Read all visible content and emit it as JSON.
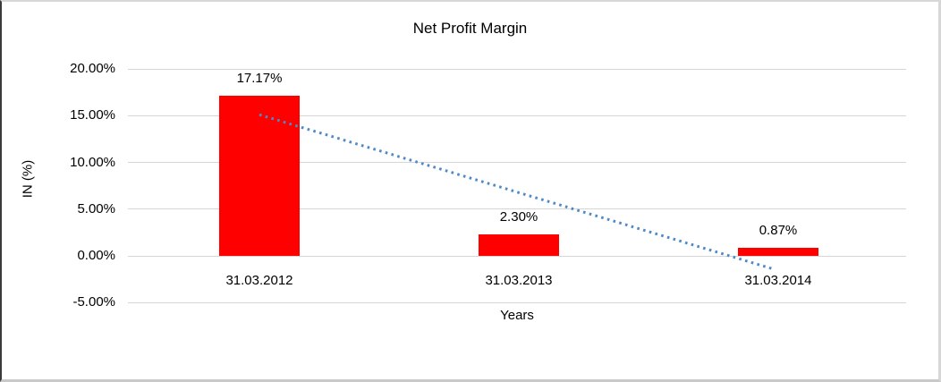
{
  "chart_data": {
    "type": "bar",
    "title": "Net Profit Margin",
    "xlabel": "Years",
    "ylabel": "IN (%)",
    "categories": [
      "31.03.2012",
      "31.03.2013",
      "31.03.2014"
    ],
    "series": [
      {
        "name": "Net Profit Margin",
        "values": [
          17.17,
          2.3,
          0.87
        ]
      }
    ],
    "value_labels": [
      "17.17%",
      "2.30%",
      "0.87%"
    ],
    "yticks": [
      {
        "value": 20,
        "label": "20.00%"
      },
      {
        "value": 15,
        "label": "15.00%"
      },
      {
        "value": 10,
        "label": "10.00%"
      },
      {
        "value": 5,
        "label": "5.00%"
      },
      {
        "value": 0,
        "label": "0.00%"
      },
      {
        "value": -5,
        "label": "-5.00%"
      }
    ],
    "ylim": [
      -5,
      20
    ],
    "grid": true,
    "legend": "none",
    "bar_color": "#ff0000",
    "gridline_color": "#d6d6d6",
    "trendline": {
      "type": "linear",
      "style": "dotted",
      "color": "#4e8ac8",
      "start_value": 15.1,
      "end_value": -1.45
    }
  }
}
